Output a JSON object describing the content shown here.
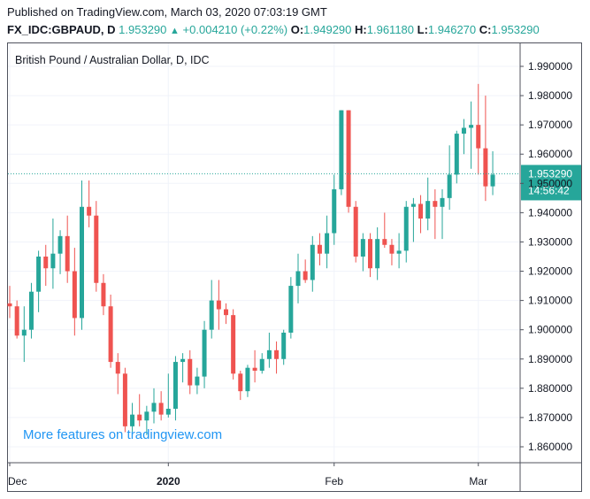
{
  "header": {
    "published": "Published on TradingView.com, March 03, 2020 07:03:19 GMT",
    "symbol": "FX_IDC:GBPAUD, D",
    "last": "1.953290",
    "change": "+0.004210 (+0.22%)",
    "open_label": "O:",
    "open": "1.949290",
    "high_label": "H:",
    "high": "1.961180",
    "low_label": "L:",
    "low": "1.946270",
    "close_label": "C:",
    "close": "1.953290"
  },
  "watermark": "More features on tradingview.com",
  "colors": {
    "up": "#26a69a",
    "down": "#ef5350",
    "price_line": "#26a69a",
    "grid": "#f0f3fa",
    "axis": "#50535e",
    "watermark": "#2196f3"
  },
  "chart_data": {
    "type": "candlestick",
    "title": "British Pound / Australian Dollar, D, IDC",
    "ylim": [
      1.85,
      2.0
    ],
    "y_ticks": [
      "1.990000",
      "1.980000",
      "1.970000",
      "1.960000",
      "1.950000",
      "1.940000",
      "1.930000",
      "1.920000",
      "1.910000",
      "1.900000",
      "1.890000",
      "1.880000",
      "1.870000",
      "1.860000"
    ],
    "x_ticks": [
      {
        "label": "Dec",
        "index": 0
      },
      {
        "label": "2020",
        "index": 22
      },
      {
        "label": "Feb",
        "index": 45
      },
      {
        "label": "Mar",
        "index": 65
      }
    ],
    "last_price": {
      "value": 1.95329,
      "label": "1.953290",
      "countdown": "14:56:42"
    },
    "grid": true,
    "candles": [
      {
        "o": 1.909,
        "h": 1.915,
        "l": 1.904,
        "c": 1.908
      },
      {
        "o": 1.908,
        "h": 1.91,
        "l": 1.897,
        "c": 1.898
      },
      {
        "o": 1.898,
        "h": 1.908,
        "l": 1.889,
        "c": 1.9
      },
      {
        "o": 1.9,
        "h": 1.916,
        "l": 1.897,
        "c": 1.913
      },
      {
        "o": 1.913,
        "h": 1.927,
        "l": 1.906,
        "c": 1.925
      },
      {
        "o": 1.925,
        "h": 1.929,
        "l": 1.915,
        "c": 1.921
      },
      {
        "o": 1.921,
        "h": 1.938,
        "l": 1.914,
        "c": 1.926
      },
      {
        "o": 1.926,
        "h": 1.934,
        "l": 1.919,
        "c": 1.932
      },
      {
        "o": 1.932,
        "h": 1.939,
        "l": 1.916,
        "c": 1.92
      },
      {
        "o": 1.92,
        "h": 1.928,
        "l": 1.898,
        "c": 1.904
      },
      {
        "o": 1.904,
        "h": 1.951,
        "l": 1.9,
        "c": 1.942
      },
      {
        "o": 1.942,
        "h": 1.951,
        "l": 1.935,
        "c": 1.939
      },
      {
        "o": 1.939,
        "h": 1.944,
        "l": 1.913,
        "c": 1.916
      },
      {
        "o": 1.916,
        "h": 1.919,
        "l": 1.905,
        "c": 1.908
      },
      {
        "o": 1.908,
        "h": 1.912,
        "l": 1.887,
        "c": 1.889
      },
      {
        "o": 1.889,
        "h": 1.892,
        "l": 1.878,
        "c": 1.885
      },
      {
        "o": 1.885,
        "h": 1.887,
        "l": 1.865,
        "c": 1.867
      },
      {
        "o": 1.867,
        "h": 1.875,
        "l": 1.864,
        "c": 1.871
      },
      {
        "o": 1.871,
        "h": 1.878,
        "l": 1.867,
        "c": 1.869
      },
      {
        "o": 1.869,
        "h": 1.874,
        "l": 1.864,
        "c": 1.872
      },
      {
        "o": 1.872,
        "h": 1.88,
        "l": 1.868,
        "c": 1.875
      },
      {
        "o": 1.875,
        "h": 1.879,
        "l": 1.869,
        "c": 1.871
      },
      {
        "o": 1.871,
        "h": 1.885,
        "l": 1.87,
        "c": 1.873
      },
      {
        "o": 1.873,
        "h": 1.891,
        "l": 1.869,
        "c": 1.889
      },
      {
        "o": 1.889,
        "h": 1.892,
        "l": 1.882,
        "c": 1.89
      },
      {
        "o": 1.89,
        "h": 1.893,
        "l": 1.878,
        "c": 1.881
      },
      {
        "o": 1.881,
        "h": 1.887,
        "l": 1.878,
        "c": 1.884
      },
      {
        "o": 1.884,
        "h": 1.903,
        "l": 1.88,
        "c": 1.9
      },
      {
        "o": 1.9,
        "h": 1.917,
        "l": 1.897,
        "c": 1.91
      },
      {
        "o": 1.91,
        "h": 1.917,
        "l": 1.9,
        "c": 1.907
      },
      {
        "o": 1.907,
        "h": 1.909,
        "l": 1.902,
        "c": 1.905
      },
      {
        "o": 1.905,
        "h": 1.907,
        "l": 1.883,
        "c": 1.885
      },
      {
        "o": 1.885,
        "h": 1.886,
        "l": 1.876,
        "c": 1.879
      },
      {
        "o": 1.879,
        "h": 1.888,
        "l": 1.877,
        "c": 1.887
      },
      {
        "o": 1.887,
        "h": 1.893,
        "l": 1.882,
        "c": 1.886
      },
      {
        "o": 1.886,
        "h": 1.892,
        "l": 1.885,
        "c": 1.89
      },
      {
        "o": 1.89,
        "h": 1.899,
        "l": 1.887,
        "c": 1.893
      },
      {
        "o": 1.893,
        "h": 1.896,
        "l": 1.885,
        "c": 1.89
      },
      {
        "o": 1.89,
        "h": 1.9,
        "l": 1.888,
        "c": 1.899
      },
      {
        "o": 1.899,
        "h": 1.918,
        "l": 1.897,
        "c": 1.915
      },
      {
        "o": 1.915,
        "h": 1.926,
        "l": 1.909,
        "c": 1.92
      },
      {
        "o": 1.92,
        "h": 1.924,
        "l": 1.916,
        "c": 1.917
      },
      {
        "o": 1.917,
        "h": 1.932,
        "l": 1.913,
        "c": 1.929
      },
      {
        "o": 1.929,
        "h": 1.933,
        "l": 1.922,
        "c": 1.926
      },
      {
        "o": 1.926,
        "h": 1.939,
        "l": 1.921,
        "c": 1.933
      },
      {
        "o": 1.933,
        "h": 1.953,
        "l": 1.929,
        "c": 1.948
      },
      {
        "o": 1.948,
        "h": 1.975,
        "l": 1.946,
        "c": 1.975
      },
      {
        "o": 1.975,
        "h": 1.975,
        "l": 1.94,
        "c": 1.942
      },
      {
        "o": 1.942,
        "h": 1.944,
        "l": 1.923,
        "c": 1.925
      },
      {
        "o": 1.925,
        "h": 1.933,
        "l": 1.92,
        "c": 1.931
      },
      {
        "o": 1.931,
        "h": 1.933,
        "l": 1.918,
        "c": 1.921
      },
      {
        "o": 1.921,
        "h": 1.935,
        "l": 1.917,
        "c": 1.931
      },
      {
        "o": 1.931,
        "h": 1.94,
        "l": 1.928,
        "c": 1.929
      },
      {
        "o": 1.929,
        "h": 1.931,
        "l": 1.922,
        "c": 1.926
      },
      {
        "o": 1.926,
        "h": 1.933,
        "l": 1.921,
        "c": 1.927
      },
      {
        "o": 1.927,
        "h": 1.944,
        "l": 1.923,
        "c": 1.942
      },
      {
        "o": 1.942,
        "h": 1.945,
        "l": 1.93,
        "c": 1.943
      },
      {
        "o": 1.943,
        "h": 1.946,
        "l": 1.933,
        "c": 1.938
      },
      {
        "o": 1.938,
        "h": 1.952,
        "l": 1.934,
        "c": 1.944
      },
      {
        "o": 1.944,
        "h": 1.948,
        "l": 1.931,
        "c": 1.942
      },
      {
        "o": 1.942,
        "h": 1.948,
        "l": 1.931,
        "c": 1.945
      },
      {
        "o": 1.945,
        "h": 1.963,
        "l": 1.941,
        "c": 1.953
      },
      {
        "o": 1.953,
        "h": 1.968,
        "l": 1.95,
        "c": 1.967
      },
      {
        "o": 1.967,
        "h": 1.972,
        "l": 1.96,
        "c": 1.969
      },
      {
        "o": 1.969,
        "h": 1.978,
        "l": 1.955,
        "c": 1.97
      },
      {
        "o": 1.97,
        "h": 1.984,
        "l": 1.953,
        "c": 1.962
      },
      {
        "o": 1.962,
        "h": 1.98,
        "l": 1.944,
        "c": 1.949
      },
      {
        "o": 1.949,
        "h": 1.961,
        "l": 1.946,
        "c": 1.953
      }
    ]
  }
}
